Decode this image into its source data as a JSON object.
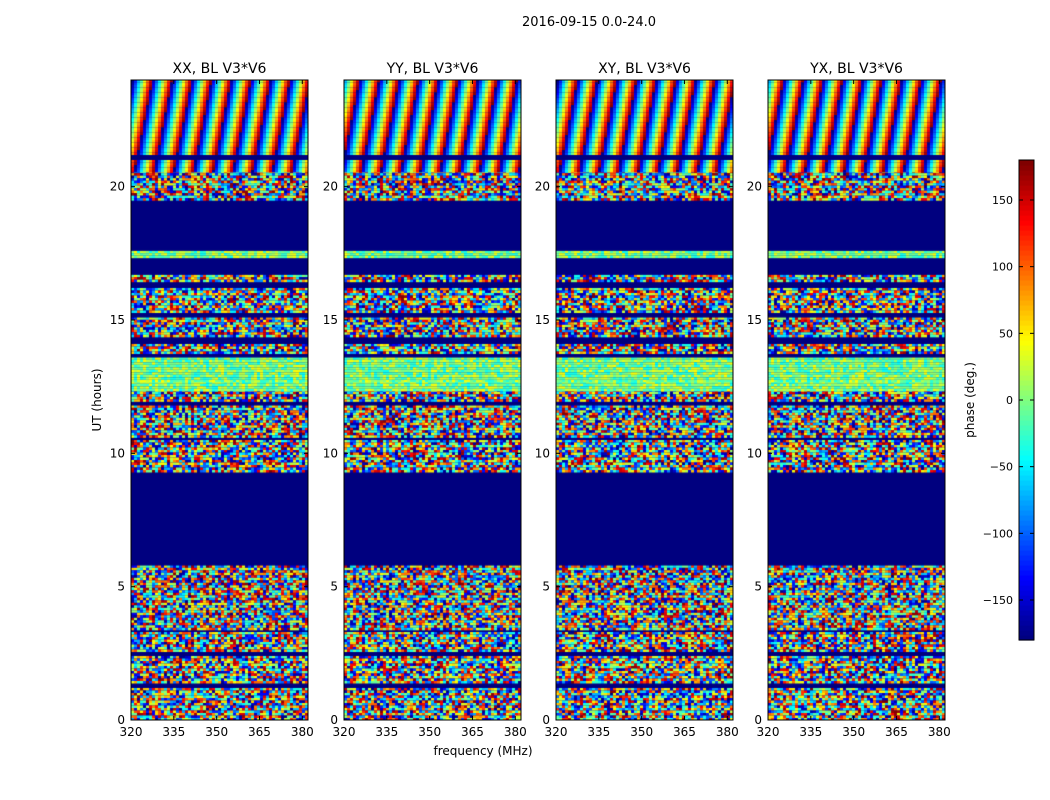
{
  "chart_data": {
    "type": "heatmap",
    "suptitle": "2016-09-15 0.0-24.0",
    "panels": [
      {
        "title": "XX, BL V3*V6"
      },
      {
        "title": "YY, BL V3*V6"
      },
      {
        "title": "XY, BL V3*V6"
      },
      {
        "title": "YX, BL V3*V6"
      }
    ],
    "xlabel": "frequency (MHz)",
    "ylabel": "UT (hours)",
    "xlim": [
      320,
      382
    ],
    "ylim": [
      0,
      24
    ],
    "xticks": [
      320,
      335,
      350,
      365,
      380
    ],
    "yticks": [
      0,
      5,
      10,
      15,
      20
    ],
    "colorbar": {
      "label": "phase (deg.)",
      "range": [
        -180,
        180
      ],
      "ticks": [
        -150,
        -100,
        -50,
        0,
        50,
        100,
        150
      ],
      "tick_labels": [
        "−150",
        "−100",
        "−50",
        "0",
        "50",
        "100",
        "150"
      ],
      "colormap": "jet"
    },
    "blank_color": "#00007f",
    "band_kinds": [
      "blank",
      "noise",
      "fringe",
      "green"
    ],
    "bands": [
      {
        "t0": 0.0,
        "t1": 1.2,
        "kind": "noise"
      },
      {
        "t0": 1.2,
        "t1": 1.4,
        "kind": "blank"
      },
      {
        "t0": 1.4,
        "t1": 2.4,
        "kind": "noise"
      },
      {
        "t0": 2.4,
        "t1": 2.55,
        "kind": "blank"
      },
      {
        "t0": 2.55,
        "t1": 3.3,
        "kind": "noise"
      },
      {
        "t0": 3.3,
        "t1": 3.45,
        "kind": "blank"
      },
      {
        "t0": 3.45,
        "t1": 5.8,
        "kind": "noise"
      },
      {
        "t0": 5.8,
        "t1": 9.3,
        "kind": "blank"
      },
      {
        "t0": 9.3,
        "t1": 10.5,
        "kind": "noise"
      },
      {
        "t0": 10.5,
        "t1": 10.6,
        "kind": "blank"
      },
      {
        "t0": 10.6,
        "t1": 11.8,
        "kind": "noise"
      },
      {
        "t0": 11.8,
        "t1": 12.0,
        "kind": "blank"
      },
      {
        "t0": 12.0,
        "t1": 12.4,
        "kind": "noise"
      },
      {
        "t0": 12.4,
        "t1": 12.7,
        "kind": "green"
      },
      {
        "t0": 12.7,
        "t1": 13.6,
        "kind": "green"
      },
      {
        "t0": 13.6,
        "t1": 13.75,
        "kind": "blank"
      },
      {
        "t0": 13.75,
        "t1": 14.1,
        "kind": "noise"
      },
      {
        "t0": 14.1,
        "t1": 14.4,
        "kind": "blank"
      },
      {
        "t0": 14.4,
        "t1": 15.1,
        "kind": "noise"
      },
      {
        "t0": 15.1,
        "t1": 15.3,
        "kind": "blank"
      },
      {
        "t0": 15.3,
        "t1": 16.2,
        "kind": "noise"
      },
      {
        "t0": 16.2,
        "t1": 16.5,
        "kind": "blank"
      },
      {
        "t0": 16.5,
        "t1": 16.7,
        "kind": "noise"
      },
      {
        "t0": 16.7,
        "t1": 17.4,
        "kind": "blank"
      },
      {
        "t0": 17.4,
        "t1": 17.6,
        "kind": "green"
      },
      {
        "t0": 17.6,
        "t1": 19.5,
        "kind": "blank"
      },
      {
        "t0": 19.5,
        "t1": 20.6,
        "kind": "noise"
      },
      {
        "t0": 20.6,
        "t1": 21.0,
        "kind": "fringe"
      },
      {
        "t0": 21.0,
        "t1": 21.2,
        "kind": "blank"
      },
      {
        "t0": 21.2,
        "t1": 24.0,
        "kind": "fringe"
      }
    ]
  }
}
